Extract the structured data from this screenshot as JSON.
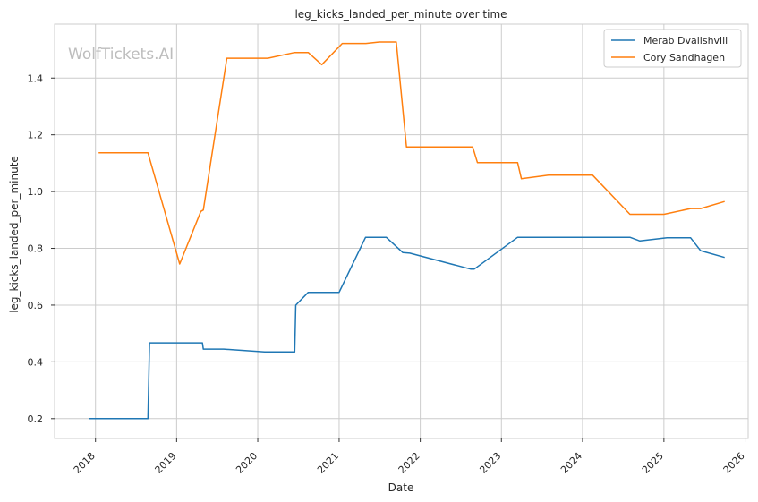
{
  "watermark": "WolfTickets.AI",
  "chart_data": {
    "type": "line",
    "title": "leg_kicks_landed_per_minute over time",
    "xlabel": "Date",
    "ylabel": "leg_kicks_landed_per_minute",
    "x_ticks": [
      "2018",
      "2019",
      "2020",
      "2021",
      "2022",
      "2023",
      "2024",
      "2025",
      "2026"
    ],
    "y_ticks": [
      "0.2",
      "0.4",
      "0.6",
      "0.8",
      "1.0",
      "1.2",
      "1.4"
    ],
    "xlim": [
      "2017-07-01",
      "2026-01-15"
    ],
    "ylim": [
      0.13,
      1.59
    ],
    "grid": true,
    "legend_position": "top-right",
    "series": [
      {
        "name": "Merab Dvalishvili",
        "color": "#1f77b4",
        "points": [
          [
            "2017-12-01",
            0.2
          ],
          [
            "2018-08-25",
            0.2
          ],
          [
            "2018-09-01",
            0.467
          ],
          [
            "2019-04-27",
            0.467
          ],
          [
            "2019-05-01",
            0.445
          ],
          [
            "2019-08-01",
            0.445
          ],
          [
            "2020-02-01",
            0.435
          ],
          [
            "2020-06-15",
            0.435
          ],
          [
            "2020-06-20",
            0.6
          ],
          [
            "2020-08-15",
            0.645
          ],
          [
            "2021-01-01",
            0.645
          ],
          [
            "2021-04-30",
            0.839
          ],
          [
            "2021-08-01",
            0.839
          ],
          [
            "2021-10-15",
            0.785
          ],
          [
            "2021-11-15",
            0.783
          ],
          [
            "2022-08-15",
            0.727
          ],
          [
            "2022-09-01",
            0.727
          ],
          [
            "2023-03-15",
            0.839
          ],
          [
            "2024-08-01",
            0.839
          ],
          [
            "2024-09-15",
            0.826
          ],
          [
            "2025-01-15",
            0.837
          ],
          [
            "2025-05-01",
            0.837
          ],
          [
            "2025-06-15",
            0.792
          ],
          [
            "2025-10-01",
            0.768
          ]
        ]
      },
      {
        "name": "Cory Sandhagen",
        "color": "#ff7f0e",
        "points": [
          [
            "2018-01-15",
            1.137
          ],
          [
            "2018-08-25",
            1.137
          ],
          [
            "2019-01-15",
            0.745
          ],
          [
            "2019-04-20",
            0.93
          ],
          [
            "2019-05-01",
            0.935
          ],
          [
            "2019-08-15",
            1.47
          ],
          [
            "2020-02-15",
            1.47
          ],
          [
            "2020-06-15",
            1.49
          ],
          [
            "2020-08-15",
            1.49
          ],
          [
            "2020-10-15",
            1.447
          ],
          [
            "2021-01-15",
            1.522
          ],
          [
            "2021-05-01",
            1.522
          ],
          [
            "2021-07-01",
            1.527
          ],
          [
            "2021-09-15",
            1.527
          ],
          [
            "2021-10-31",
            1.157
          ],
          [
            "2022-08-25",
            1.157
          ],
          [
            "2022-09-15",
            1.102
          ],
          [
            "2023-03-15",
            1.102
          ],
          [
            "2023-04-01",
            1.045
          ],
          [
            "2023-08-01",
            1.058
          ],
          [
            "2024-02-15",
            1.058
          ],
          [
            "2024-08-01",
            0.92
          ],
          [
            "2025-01-01",
            0.92
          ],
          [
            "2025-05-01",
            0.94
          ],
          [
            "2025-06-15",
            0.94
          ],
          [
            "2025-10-01",
            0.965
          ]
        ]
      }
    ]
  }
}
